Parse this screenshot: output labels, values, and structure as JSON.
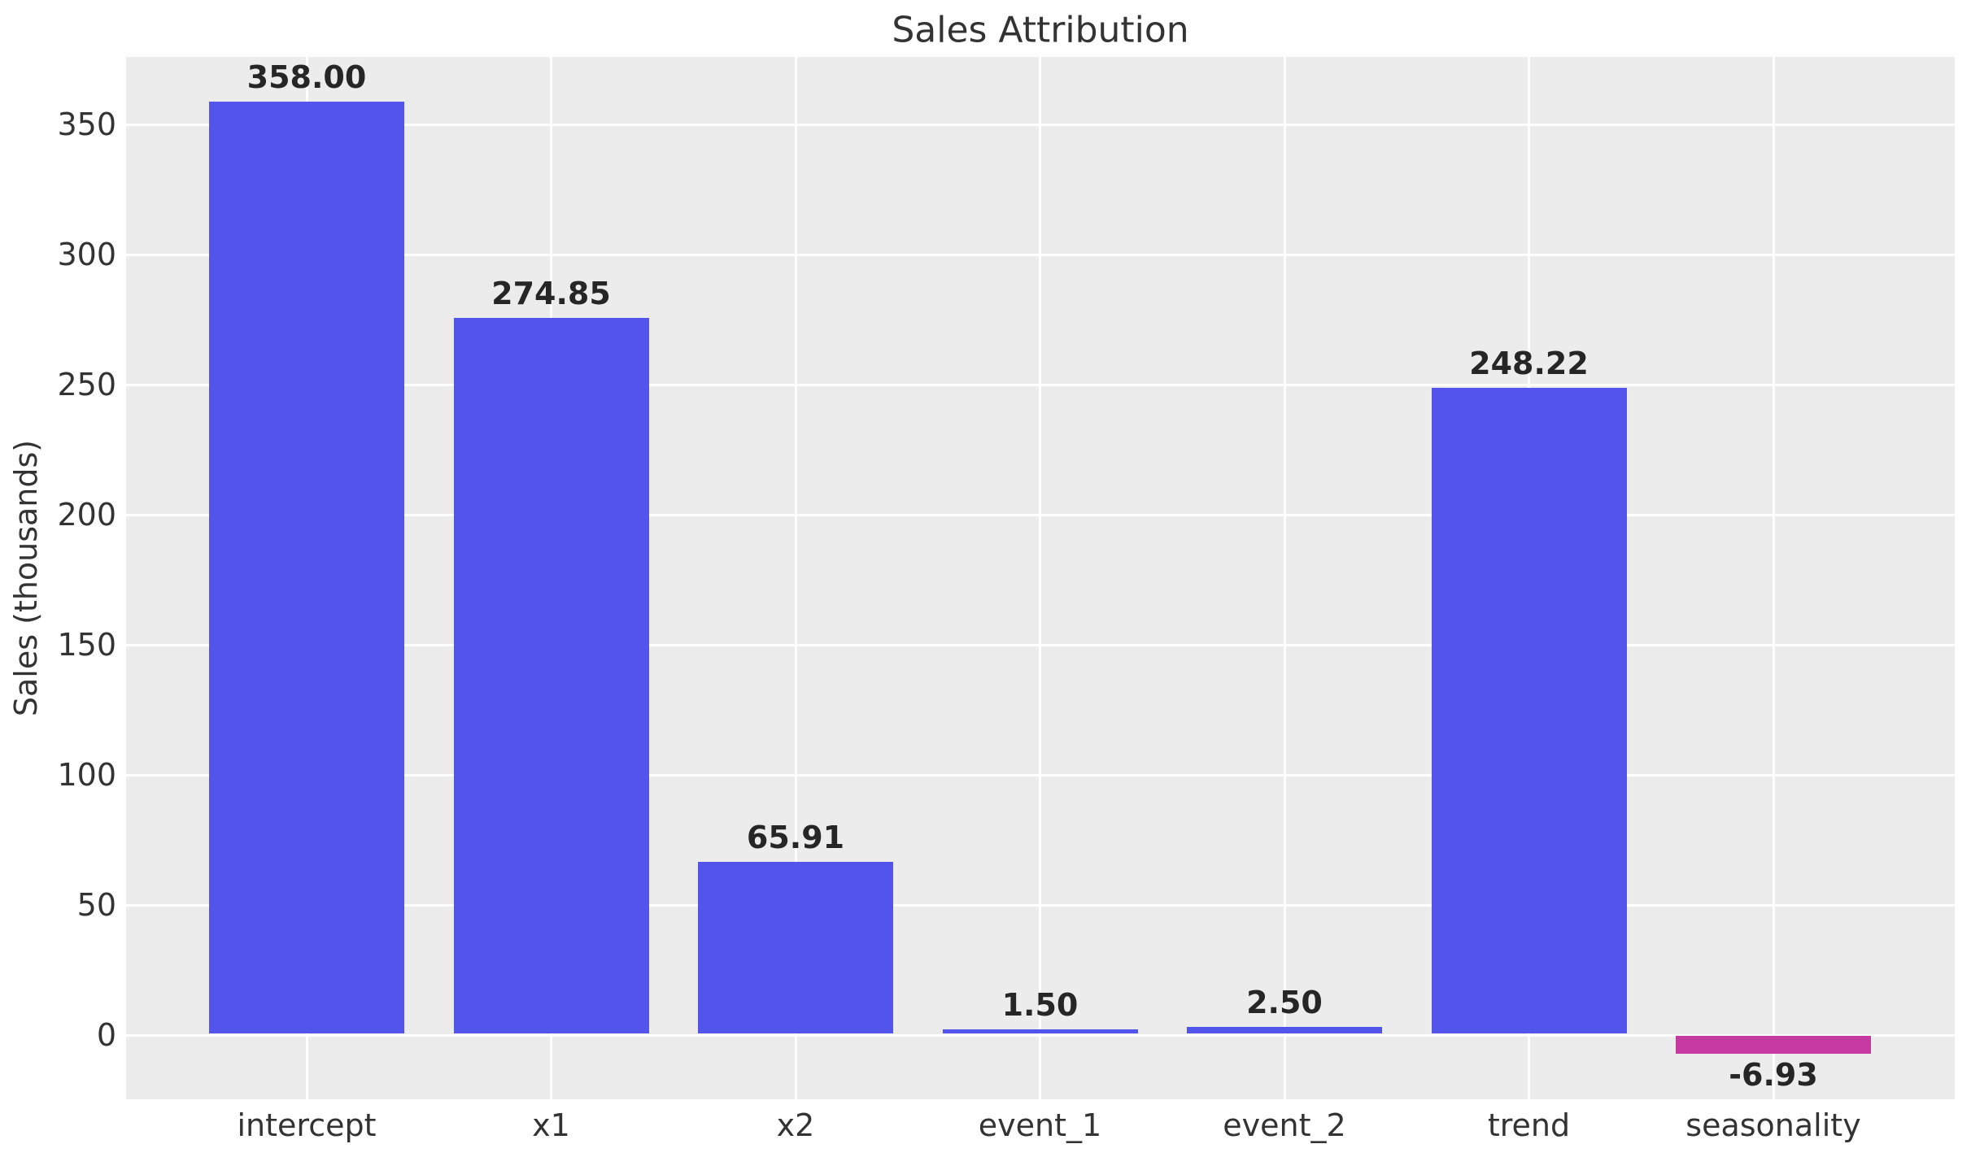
{
  "chart_data": {
    "type": "bar",
    "title": "Sales Attribution",
    "xlabel": "",
    "ylabel": "Sales (thousands)",
    "categories": [
      "intercept",
      "x1",
      "x2",
      "event_1",
      "event_2",
      "trend",
      "seasonality"
    ],
    "values": [
      358.0,
      274.85,
      65.91,
      1.5,
      2.5,
      248.22,
      -6.93
    ],
    "value_labels": [
      "358.00",
      "274.85",
      "65.91",
      "1.50",
      "2.50",
      "248.22",
      "-6.93"
    ],
    "yticks": [
      0,
      50,
      100,
      150,
      200,
      250,
      300,
      350
    ],
    "ylim": [
      -25,
      376
    ],
    "grid": true,
    "legend": false,
    "colors": {
      "positive_bar": "#5254ec",
      "negative_bar": "#c43aa0",
      "plot_background": "#ececec",
      "grid_line": "#ffffff",
      "figure_background": "#ffffff",
      "title_text": "#333333",
      "tick_text": "#333333",
      "value_label_text": "#262626"
    }
  }
}
